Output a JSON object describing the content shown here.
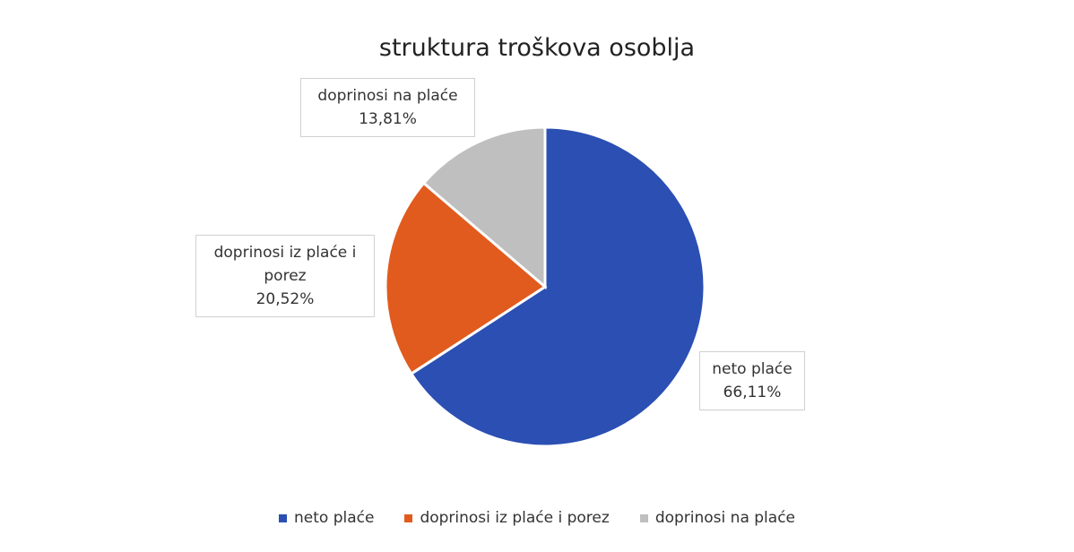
{
  "chart_data": {
    "type": "pie",
    "title": "struktura troškova osoblja",
    "categories": [
      "neto plaće",
      "doprinosi iz plaće i porez",
      "doprinosi na plaće"
    ],
    "values": [
      66.11,
      20.52,
      13.81
    ],
    "value_labels": [
      "66,11%",
      "20,52%",
      "13,81%"
    ],
    "colors": [
      "#2b4fb3",
      "#e15b1e",
      "#bfbfbf"
    ],
    "legend": "bottom"
  }
}
